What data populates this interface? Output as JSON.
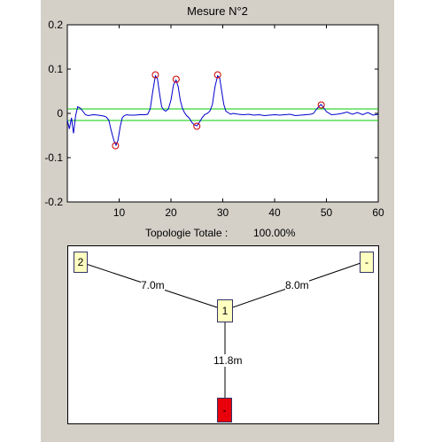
{
  "plot": {
    "title": "Mesure N°2",
    "chart_data": {
      "type": "line",
      "title": "Mesure N°2",
      "xlim": [
        0,
        60
      ],
      "ylim": [
        -0.2,
        0.2
      ],
      "xticks": [
        10,
        20,
        30,
        40,
        50,
        60
      ],
      "yticks": [
        0.2,
        0.1,
        0,
        -0.1,
        -0.2
      ],
      "xtick_labels": [
        "10",
        "20",
        "30",
        "40",
        "50",
        "60"
      ],
      "ytick_labels": [
        "0.2",
        "0.1",
        "0",
        "-0.1",
        "-0.2"
      ],
      "grid": false,
      "series": [
        {
          "color": "#0000cc",
          "x": [
            0,
            0.4,
            0.8,
            1.2,
            1.6,
            2,
            2.5,
            3,
            3.5,
            4,
            5,
            6,
            7,
            7.5,
            8,
            8.5,
            9,
            9.4,
            9.8,
            10.2,
            10.6,
            11,
            11.5,
            12,
            13,
            14,
            15,
            15.5,
            16,
            16.5,
            17,
            17.4,
            17.8,
            18.2,
            18.6,
            19,
            19.5,
            20,
            20.5,
            21,
            21.4,
            21.8,
            22.2,
            22.6,
            23,
            23.5,
            24,
            24.5,
            25,
            25.5,
            26,
            26.5,
            27,
            27.5,
            28,
            28.5,
            29,
            29.4,
            29.8,
            30.2,
            30.6,
            31,
            31.5,
            32,
            33,
            34,
            35,
            36,
            37,
            38,
            39,
            40,
            41,
            42,
            43,
            44,
            45,
            46,
            47,
            47.5,
            48,
            48.5,
            49,
            49.5,
            50,
            51,
            52,
            53,
            54,
            55,
            56,
            57,
            58,
            59,
            60
          ],
          "y": [
            -0.015,
            -0.035,
            -0.01,
            -0.045,
            -0.005,
            0.015,
            0.012,
            0.005,
            -0.003,
            -0.005,
            -0.003,
            -0.004,
            -0.006,
            -0.008,
            -0.015,
            -0.04,
            -0.062,
            -0.072,
            -0.06,
            -0.03,
            -0.01,
            -0.005,
            -0.003,
            -0.004,
            -0.004,
            -0.003,
            -0.003,
            -0.002,
            0.01,
            0.05,
            0.085,
            0.078,
            0.045,
            0.015,
            0.008,
            0.005,
            0.01,
            0.03,
            0.065,
            0.075,
            0.06,
            0.03,
            0.012,
            0.002,
            -0.005,
            -0.01,
            -0.02,
            -0.026,
            -0.028,
            -0.02,
            -0.01,
            -0.003,
            0.0,
            0.005,
            0.02,
            0.06,
            0.085,
            0.08,
            0.05,
            0.02,
            0.005,
            0.002,
            -0.002,
            0.0,
            -0.002,
            -0.003,
            -0.002,
            -0.004,
            -0.003,
            -0.005,
            -0.004,
            -0.003,
            -0.004,
            -0.003,
            -0.002,
            -0.005,
            -0.004,
            -0.003,
            -0.002,
            0.0,
            0.008,
            0.015,
            0.02,
            0.012,
            0.004,
            -0.003,
            -0.002,
            0.0,
            0.003,
            -0.002,
            0.002,
            -0.003,
            0.002,
            -0.004,
            -0.002
          ]
        }
      ],
      "thresholds": [
        0.01,
        -0.016
      ],
      "threshold_color": "#00cc00",
      "markers": {
        "color": "#cc0000",
        "x": [
          9.3,
          17,
          21,
          25,
          29,
          49
        ],
        "y": [
          -0.073,
          0.087,
          0.077,
          -0.029,
          0.087,
          0.019
        ]
      }
    }
  },
  "topology": {
    "label": "Topologie Totale :",
    "value": "100.00%"
  },
  "diagram": {
    "nodes": [
      {
        "label": "2",
        "color": "#ffffc0"
      },
      {
        "label": "-",
        "color": "#ffffc0"
      },
      {
        "label": "1",
        "color": "#ffffc0"
      },
      {
        "label": "-",
        "color": "#e8000a"
      }
    ],
    "edges": [
      {
        "label": "7.0m"
      },
      {
        "label": "8.0m"
      },
      {
        "label": "11.8m"
      }
    ]
  }
}
